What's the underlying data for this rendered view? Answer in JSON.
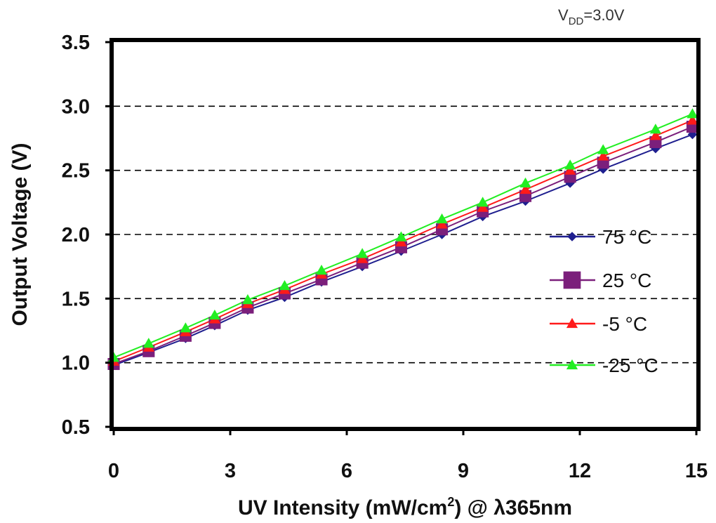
{
  "chart_data": {
    "type": "line",
    "annotation": {
      "main": "V",
      "sub": "DD",
      "rest": "=3.0V"
    },
    "xlabel": {
      "main": "UV Intensity (mW/cm",
      "sup": "2",
      "rest": ") @ λ365nm"
    },
    "ylabel": "Output Voltage (V)",
    "xlim": [
      0,
      15
    ],
    "ylim": [
      0.5,
      3.5
    ],
    "xticks": [
      "0",
      "3",
      "6",
      "9",
      "12",
      "15"
    ],
    "yticks": [
      "0.5",
      "1.0",
      "1.5",
      "2.0",
      "2.5",
      "3.0",
      "3.5"
    ],
    "grid": "horizontal dashed",
    "legend_position": "right",
    "x": [
      0,
      0.9,
      1.85,
      2.6,
      3.45,
      4.4,
      5.35,
      6.4,
      7.4,
      8.45,
      9.5,
      10.6,
      11.75,
      12.6,
      13.95,
      14.9
    ],
    "series": [
      {
        "name": "75 °C",
        "color": "#1f1f8f",
        "marker": "diamond",
        "values": [
          0.98,
          1.08,
          1.19,
          1.29,
          1.41,
          1.51,
          1.63,
          1.75,
          1.87,
          2.0,
          2.14,
          2.26,
          2.4,
          2.51,
          2.67,
          2.78
        ]
      },
      {
        "name": "25 °C",
        "color": "#7b1f7b",
        "marker": "square",
        "values": [
          0.99,
          1.09,
          1.21,
          1.31,
          1.43,
          1.54,
          1.65,
          1.78,
          1.9,
          2.04,
          2.18,
          2.3,
          2.45,
          2.56,
          2.72,
          2.84
        ]
      },
      {
        "name": "-5 °C",
        "color": "#ff1a1a",
        "marker": "triangle",
        "values": [
          1.01,
          1.12,
          1.24,
          1.34,
          1.46,
          1.57,
          1.69,
          1.81,
          1.94,
          2.08,
          2.21,
          2.35,
          2.5,
          2.61,
          2.77,
          2.89
        ]
      },
      {
        "name": "-25 °C",
        "color": "#22ee22",
        "marker": "triangle",
        "values": [
          1.04,
          1.15,
          1.27,
          1.37,
          1.49,
          1.6,
          1.72,
          1.85,
          1.98,
          2.12,
          2.25,
          2.4,
          2.54,
          2.66,
          2.82,
          2.94
        ]
      }
    ]
  }
}
